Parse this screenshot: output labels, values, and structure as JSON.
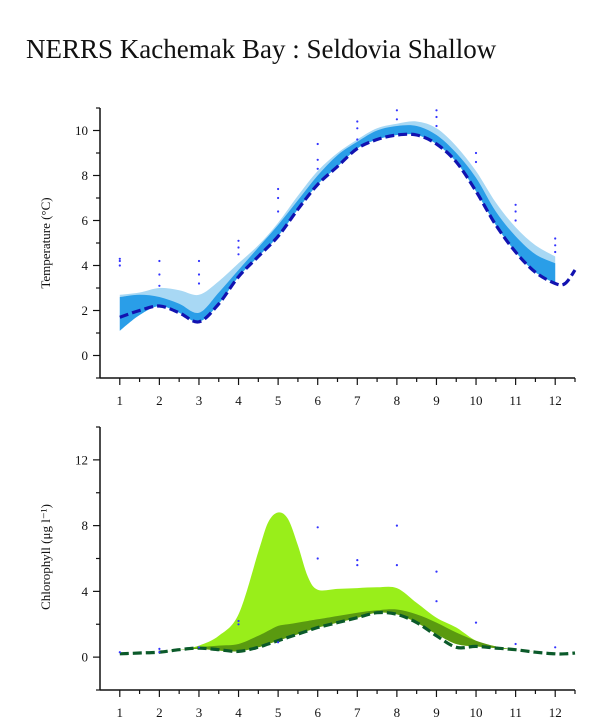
{
  "title": "NERRS Kachemak Bay : Seldovia Shallow",
  "chart_data": [
    {
      "type": "area",
      "ylabel": "Temperature (°C)",
      "xlim": [
        0.5,
        12.5
      ],
      "ylim": [
        -1,
        11
      ],
      "x_ticks": [
        1,
        2,
        3,
        4,
        5,
        6,
        7,
        8,
        9,
        10,
        11,
        12
      ],
      "y_ticks": [
        0,
        2,
        4,
        6,
        8,
        10
      ],
      "grid": false,
      "colors": {
        "band_light": "#a8d8f4",
        "band_dark": "#2a9ee8",
        "median_line": "#1212b0",
        "points": "#3333ff"
      },
      "x": [
        1,
        1.5,
        2,
        2.5,
        3,
        3.5,
        4,
        4.5,
        5,
        5.5,
        6,
        6.5,
        7,
        7.5,
        8,
        8.5,
        9,
        9.5,
        10,
        10.5,
        11,
        11.5,
        12
      ],
      "series": [
        {
          "role": "light-band-upper",
          "values": [
            2.7,
            2.8,
            3.0,
            2.9,
            2.7,
            3.3,
            4.1,
            4.9,
            5.9,
            7.1,
            8.2,
            9.0,
            9.6,
            10.1,
            10.3,
            10.4,
            10.1,
            9.3,
            8.2,
            6.8,
            5.7,
            4.9,
            4.4
          ]
        },
        {
          "role": "dark-band-upper",
          "values": [
            2.6,
            2.7,
            2.6,
            2.3,
            1.9,
            2.8,
            3.8,
            4.8,
            5.8,
            6.9,
            8.0,
            8.9,
            9.5,
            10.0,
            10.2,
            10.2,
            9.8,
            9.0,
            7.9,
            6.4,
            5.3,
            4.5,
            4.1
          ]
        },
        {
          "role": "band-lower",
          "values": [
            1.1,
            1.8,
            2.2,
            1.9,
            1.5,
            2.3,
            3.5,
            4.4,
            5.3,
            6.5,
            7.6,
            8.4,
            9.2,
            9.6,
            9.8,
            9.8,
            9.4,
            8.6,
            7.3,
            5.8,
            4.6,
            3.7,
            3.2
          ]
        },
        {
          "role": "median",
          "values": [
            1.7,
            2.0,
            2.2,
            1.9,
            1.5,
            2.3,
            3.5,
            4.4,
            5.3,
            6.5,
            7.6,
            8.4,
            9.2,
            9.6,
            9.8,
            9.8,
            9.4,
            8.6,
            7.3,
            5.8,
            4.6,
            3.7,
            3.2
          ]
        }
      ],
      "median_tail": {
        "x": [
          12,
          12.25,
          12.5
        ],
        "values": [
          3.2,
          3.2,
          3.8
        ]
      },
      "points": [
        [
          1,
          4.3
        ],
        [
          1,
          4.2
        ],
        [
          1,
          4.0
        ],
        [
          2,
          4.2
        ],
        [
          2,
          3.6
        ],
        [
          2,
          3.1
        ],
        [
          3,
          4.2
        ],
        [
          3,
          3.6
        ],
        [
          3,
          3.2
        ],
        [
          4,
          5.1
        ],
        [
          4,
          4.8
        ],
        [
          4,
          4.5
        ],
        [
          5,
          7.4
        ],
        [
          5,
          7.0
        ],
        [
          5,
          6.4
        ],
        [
          6,
          9.4
        ],
        [
          6,
          8.7
        ],
        [
          6,
          8.3
        ],
        [
          7,
          10.4
        ],
        [
          7,
          10.1
        ],
        [
          7,
          9.6
        ],
        [
          8,
          10.9
        ],
        [
          8,
          10.5
        ],
        [
          9,
          10.9
        ],
        [
          9,
          10.6
        ],
        [
          9,
          10.2
        ],
        [
          10,
          9.0
        ],
        [
          10,
          8.6
        ],
        [
          11,
          6.7
        ],
        [
          11,
          6.4
        ],
        [
          11,
          6.0
        ],
        [
          12,
          5.2
        ],
        [
          12,
          4.9
        ],
        [
          12,
          4.6
        ]
      ]
    },
    {
      "type": "area",
      "ylabel": "Chlorophyll (μg l⁻¹)",
      "xlim": [
        0.5,
        12.5
      ],
      "ylim": [
        -2,
        14
      ],
      "x_ticks": [
        1,
        2,
        3,
        4,
        5,
        6,
        7,
        8,
        9,
        10,
        11,
        12
      ],
      "y_ticks": [
        0,
        4,
        8,
        12
      ],
      "grid": false,
      "colors": {
        "band_light": "#99ee1a",
        "band_dark": "#5a9a10",
        "median_line": "#0b5a2a",
        "points": "#3333ff"
      },
      "x": [
        1,
        1.5,
        2,
        2.5,
        3,
        3.5,
        4,
        4.5,
        4.75,
        5,
        5.25,
        5.5,
        5.75,
        6,
        6.5,
        7,
        7.5,
        8,
        8.5,
        9,
        9.5,
        10,
        10.5,
        11,
        11.5,
        12
      ],
      "series": [
        {
          "role": "light-band-upper",
          "values": [
            0.15,
            0.2,
            0.3,
            0.45,
            0.7,
            1.3,
            2.6,
            6.4,
            8.2,
            8.8,
            8.4,
            6.8,
            4.9,
            4.1,
            4.15,
            4.2,
            4.25,
            4.2,
            3.3,
            2.4,
            1.8,
            1.0,
            0.65,
            0.45,
            0.3,
            0.2
          ]
        },
        {
          "role": "dark-band-upper",
          "values": [
            0.15,
            0.2,
            0.3,
            0.45,
            0.6,
            0.7,
            0.8,
            1.3,
            1.6,
            1.9,
            2.0,
            2.1,
            2.2,
            2.3,
            2.5,
            2.7,
            2.85,
            2.9,
            2.6,
            2.1,
            1.5,
            1.0,
            0.65,
            0.45,
            0.3,
            0.2
          ]
        },
        {
          "role": "band-lower",
          "values": [
            0.15,
            0.2,
            0.3,
            0.45,
            0.5,
            0.4,
            0.35,
            0.6,
            0.8,
            1.0,
            1.2,
            1.4,
            1.6,
            1.8,
            2.1,
            2.4,
            2.7,
            2.6,
            2.1,
            1.4,
            0.8,
            0.65,
            0.55,
            0.45,
            0.3,
            0.2
          ]
        },
        {
          "role": "median",
          "values": [
            0.2,
            0.25,
            0.3,
            0.45,
            0.55,
            0.45,
            0.35,
            0.6,
            0.8,
            1.0,
            1.2,
            1.4,
            1.6,
            1.8,
            2.1,
            2.4,
            2.7,
            2.6,
            2.1,
            1.3,
            0.6,
            0.65,
            0.55,
            0.45,
            0.3,
            0.2
          ]
        }
      ],
      "median_tail": {
        "x": [
          12,
          12.25,
          12.5
        ],
        "values": [
          0.2,
          0.2,
          0.25
        ]
      },
      "points": [
        [
          1,
          0.3
        ],
        [
          2,
          0.5
        ],
        [
          2,
          0.3
        ],
        [
          3,
          0.6
        ],
        [
          4,
          2.2
        ],
        [
          4,
          2.0
        ],
        [
          5,
          0.9
        ],
        [
          6,
          7.9
        ],
        [
          6,
          6.0
        ],
        [
          7,
          5.9
        ],
        [
          7,
          5.6
        ],
        [
          8,
          8.0
        ],
        [
          8,
          5.6
        ],
        [
          9,
          5.2
        ],
        [
          9,
          3.4
        ],
        [
          10,
          2.1
        ],
        [
          11,
          0.8
        ],
        [
          12,
          0.6
        ]
      ]
    }
  ]
}
